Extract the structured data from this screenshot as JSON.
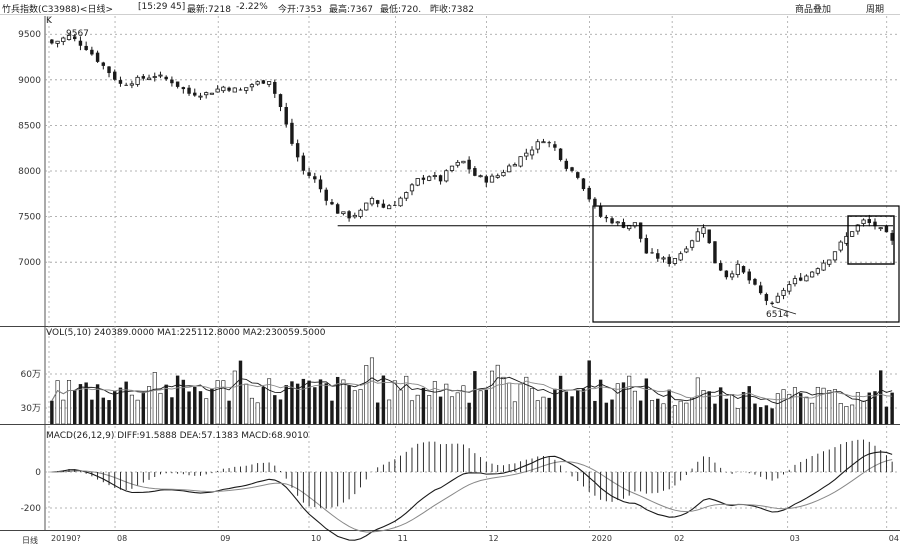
{
  "header": {
    "title": "竹兵指数(C33988)<日线>",
    "time": "[15:29 45]",
    "latest": "最新:7218",
    "change": "-2.22%",
    "open": "今开:7353",
    "high": "最高:7367",
    "low": "最低:720.",
    "prev_close": "昨收:7382",
    "btn_overlay": "商品叠加",
    "btn_period": "周期"
  },
  "chart_data": {
    "type": "candlestick",
    "price_panel": {
      "label": "K",
      "ylim": [
        6300,
        9700
      ],
      "yticks": [
        "9500",
        "9000",
        "8500",
        "8000",
        "7500",
        "7000"
      ],
      "annotations": {
        "high_label": "9567",
        "low_label": "6514"
      },
      "support_line_value": 7400
    },
    "volume_panel": {
      "legend": "VOL(5,10) 240389.0000 MA1:225112.8000 MA2:230059.5000",
      "yticks": [
        "60万",
        "30万"
      ]
    },
    "macd_panel": {
      "legend": "MACD(26,12,9) DIFF:91.5888 DEA:57.1383 MACD:68.9010",
      "yticks": [
        "0",
        "-200"
      ]
    },
    "x_axis": {
      "period_label": "日线",
      "ticks": [
        "20190?",
        "08",
        "09",
        "10",
        "11",
        "12",
        "2020",
        "02",
        "03",
        "04"
      ]
    },
    "price_path": [
      [
        0,
        9400
      ],
      [
        3,
        9480
      ],
      [
        6,
        9350
      ],
      [
        9,
        9150
      ],
      [
        12,
        8950
      ],
      [
        15,
        9000
      ],
      [
        18,
        9050
      ],
      [
        21,
        8980
      ],
      [
        24,
        8850
      ],
      [
        27,
        8850
      ],
      [
        30,
        8920
      ],
      [
        33,
        8880
      ],
      [
        35,
        8950
      ],
      [
        38,
        9000
      ],
      [
        40,
        8700
      ],
      [
        42,
        8300
      ],
      [
        44,
        8000
      ],
      [
        46,
        7900
      ],
      [
        48,
        7700
      ],
      [
        50,
        7550
      ],
      [
        52,
        7500
      ],
      [
        54,
        7550
      ],
      [
        56,
        7700
      ],
      [
        58,
        7600
      ],
      [
        60,
        7650
      ],
      [
        62,
        7750
      ],
      [
        64,
        7900
      ],
      [
        66,
        7950
      ],
      [
        68,
        7900
      ],
      [
        70,
        8050
      ],
      [
        72,
        8100
      ],
      [
        74,
        7950
      ],
      [
        76,
        7900
      ],
      [
        78,
        7950
      ],
      [
        80,
        8050
      ],
      [
        82,
        8150
      ],
      [
        84,
        8250
      ],
      [
        86,
        8350
      ],
      [
        88,
        8250
      ],
      [
        90,
        8050
      ],
      [
        92,
        7950
      ],
      [
        94,
        7700
      ],
      [
        96,
        7500
      ],
      [
        98,
        7450
      ],
      [
        100,
        7400
      ],
      [
        102,
        7420
      ],
      [
        104,
        7100
      ],
      [
        106,
        7050
      ],
      [
        108,
        7000
      ],
      [
        110,
        7100
      ],
      [
        112,
        7250
      ],
      [
        114,
        7400
      ],
      [
        116,
        7000
      ],
      [
        118,
        6850
      ],
      [
        120,
        6950
      ],
      [
        122,
        6800
      ],
      [
        124,
        6650
      ],
      [
        126,
        6514
      ],
      [
        128,
        6700
      ],
      [
        130,
        6800
      ],
      [
        132,
        6850
      ],
      [
        134,
        6950
      ],
      [
        136,
        7050
      ],
      [
        138,
        7200
      ],
      [
        140,
        7350
      ],
      [
        142,
        7450
      ],
      [
        144,
        7400
      ],
      [
        146,
        7300
      ],
      [
        147,
        7218
      ]
    ],
    "n_bars": 148
  },
  "colors": {
    "candle": "#1a1a1a",
    "ma_line": "#888888",
    "grid": "#9a9a9a",
    "box": "#000000"
  }
}
